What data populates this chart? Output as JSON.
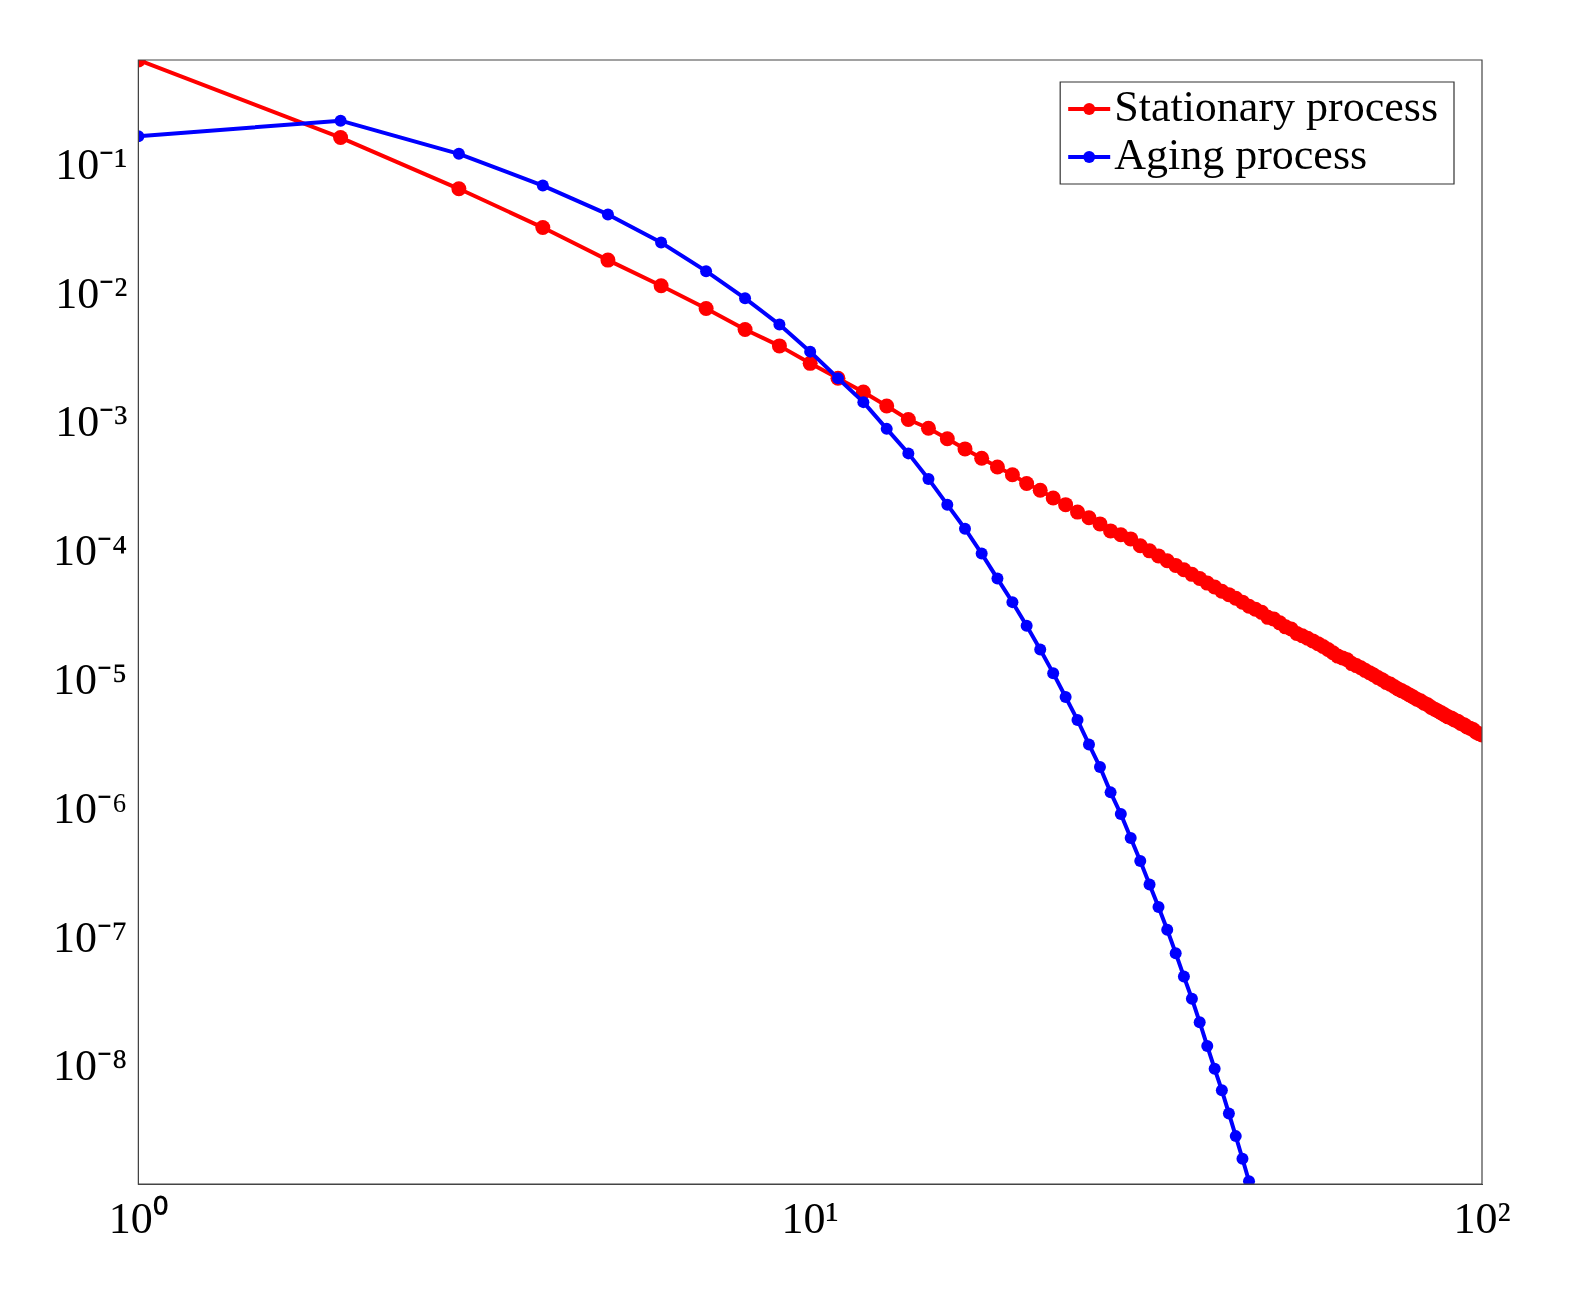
{
  "chart_data": {
    "type": "line",
    "log": "xy",
    "grid": false,
    "legend": "top right",
    "marker": "circle",
    "line_style": "solid",
    "xlim": [
      1,
      100
    ],
    "ylim": [
      1.27e-09,
      0.68
    ],
    "xticks": [
      {
        "value": 1,
        "label": "10⁰"
      },
      {
        "value": 10,
        "label": "10¹"
      },
      {
        "value": 100,
        "label": "10²"
      }
    ],
    "yticks": [
      {
        "value": 1e-08,
        "label": "10⁻⁸"
      },
      {
        "value": 1e-07,
        "label": "10⁻⁷"
      },
      {
        "value": 1e-06,
        "label": "10⁻⁶"
      },
      {
        "value": 1e-05,
        "label": "10⁻⁵"
      },
      {
        "value": 0.0001,
        "label": "10⁻⁴"
      },
      {
        "value": 0.001,
        "label": "10⁻³"
      },
      {
        "value": 0.01,
        "label": "10⁻²"
      },
      {
        "value": 0.1,
        "label": "10⁻¹"
      }
    ],
    "series": [
      {
        "name": "Stationary process",
        "color": "#ff0000",
        "x": [
          1,
          2,
          3,
          4,
          5,
          6,
          7,
          8,
          9,
          10,
          11,
          12,
          13,
          14,
          15,
          16,
          17,
          18,
          19,
          20,
          21,
          22,
          23,
          24,
          25,
          26,
          27,
          28,
          29,
          30,
          31,
          32,
          33,
          34,
          35,
          36,
          37,
          38,
          39,
          40,
          41,
          42,
          43,
          44,
          45,
          46,
          47,
          48,
          49,
          50,
          51,
          52,
          53,
          54,
          55,
          56,
          57,
          58,
          59,
          60,
          61,
          62,
          63,
          64,
          65,
          66,
          67,
          68,
          69,
          70,
          71,
          72,
          73,
          74,
          75,
          76,
          77,
          78,
          79,
          80,
          81,
          82,
          83,
          84,
          85,
          86,
          87,
          88,
          89,
          90,
          91,
          92,
          93,
          94,
          95,
          96,
          97,
          98,
          99,
          100
        ],
        "values": [
          0.68,
          0.17,
          0.068,
          0.034,
          0.019,
          0.012,
          0.008,
          0.0055,
          0.0041,
          0.003,
          0.0023,
          0.0018,
          0.0014,
          0.0011,
          0.00094,
          0.00078,
          0.00065,
          0.00055,
          0.00047,
          0.00041,
          0.00035,
          0.00031,
          0.00027,
          0.00024,
          0.00021,
          0.00019,
          0.00017,
          0.00015,
          0.00014,
          0.00013,
          0.000115,
          0.000105,
          9.6e-05,
          8.8e-05,
          8.1e-05,
          7.5e-05,
          6.9e-05,
          6.4e-05,
          5.9e-05,
          5.5e-05,
          5.1e-05,
          4.8e-05,
          4.5e-05,
          4.2e-05,
          3.9e-05,
          3.7e-05,
          3.5e-05,
          3.2e-05,
          3.1e-05,
          2.9e-05,
          2.7e-05,
          2.6e-05,
          2.4e-05,
          2.3e-05,
          2.2e-05,
          2.1e-05,
          2e-05,
          1.9e-05,
          1.8e-05,
          1.7e-05,
          1.6e-05,
          1.55e-05,
          1.5e-05,
          1.4e-05,
          1.35e-05,
          1.3e-05,
          1.24e-05,
          1.19e-05,
          1.14e-05,
          1.09e-05,
          1.05e-05,
          1e-05,
          9.7e-06,
          9.3e-06,
          8.9e-06,
          8.6e-06,
          8.3e-06,
          8e-06,
          7.7e-06,
          7.4e-06,
          7.2e-06,
          6.9e-06,
          6.7e-06,
          6.4e-06,
          6.2e-06,
          6e-06,
          5.8e-06,
          5.6e-06,
          5.4e-06,
          5.3e-06,
          5.1e-06,
          5e-06,
          4.8e-06,
          4.7e-06,
          4.5e-06,
          4.4e-06,
          4.3e-06,
          4.1e-06,
          4e-06,
          3.9e-06
        ]
      },
      {
        "name": "Aging process",
        "color": "#0000ff",
        "x": [
          1,
          2,
          3,
          4,
          5,
          6,
          7,
          8,
          9,
          10,
          11,
          12,
          13,
          14,
          15,
          16,
          17,
          18,
          19,
          20,
          21,
          22,
          23,
          24,
          25,
          26,
          27,
          28,
          29,
          30,
          31,
          32,
          33,
          34,
          35,
          36,
          37,
          38,
          39,
          40,
          41,
          42,
          43,
          44,
          45
        ],
        "values": [
          0.174,
          0.23,
          0.127,
          0.072,
          0.043,
          0.026,
          0.0156,
          0.0096,
          0.006,
          0.0037,
          0.0023,
          0.0015,
          0.00093,
          0.0006,
          0.00038,
          0.00024,
          0.000156,
          0.0001,
          6.4e-05,
          4.2e-05,
          2.75e-05,
          1.8e-05,
          1.18e-05,
          7.7e-06,
          5.1e-06,
          3.3e-06,
          2.2e-06,
          1.4e-06,
          9.5e-07,
          6.2e-07,
          4.1e-07,
          2.7e-07,
          1.8e-07,
          1.2e-07,
          7.9e-08,
          5.2e-08,
          3.5e-08,
          2.3e-08,
          1.5e-08,
          1e-08,
          6.8e-09,
          4.5e-09,
          3e-09,
          2e-09,
          1.34e-09
        ]
      }
    ]
  }
}
